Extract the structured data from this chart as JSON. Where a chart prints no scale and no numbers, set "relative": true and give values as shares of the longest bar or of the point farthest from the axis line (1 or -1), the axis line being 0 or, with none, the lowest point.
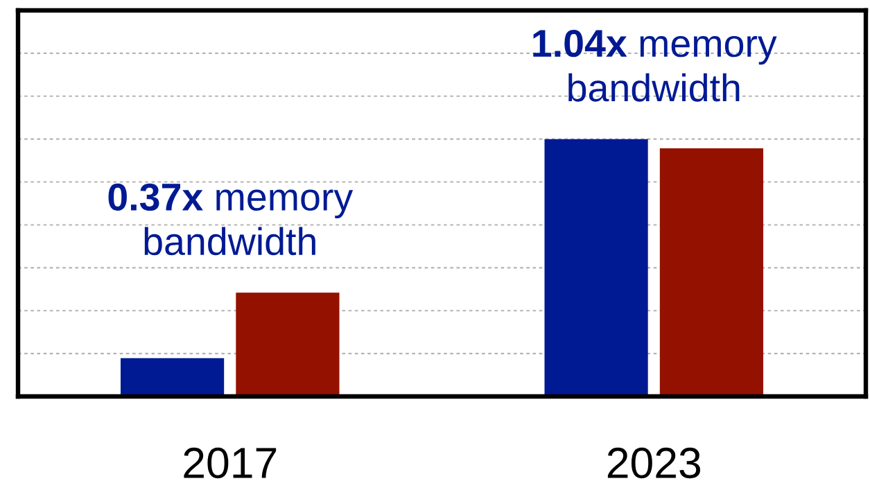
{
  "chart_data": {
    "type": "bar",
    "categories": [
      "2017",
      "2023"
    ],
    "series": [
      {
        "color": "#001a94",
        "values": [
          0.149,
          1
        ]
      },
      {
        "color": "#941100",
        "values": [
          0.403,
          0.964
        ]
      }
    ],
    "relative": true,
    "grid": "y",
    "tick_labels": "x",
    "annotations": [
      "0.37x memory\nbandwidth",
      "1.04x memory\nbandwidth"
    ]
  }
}
